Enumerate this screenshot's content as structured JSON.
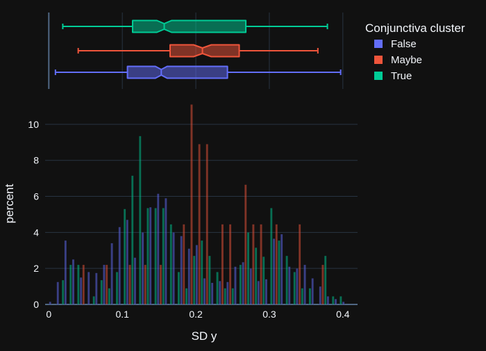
{
  "chart_data": {
    "type": "histogram",
    "xlabel": "SD y",
    "ylabel": "percent",
    "xlim": [
      -0.005,
      0.42
    ],
    "ylim": [
      0,
      11.5
    ],
    "x_ticks": [
      "0",
      "0.1",
      "0.2",
      "0.3",
      "0.4"
    ],
    "y_ticks": [
      "0",
      "2",
      "4",
      "6",
      "8",
      "10"
    ],
    "legend": {
      "title": "Conjunctiva cluster",
      "placement": "top-right"
    },
    "bin_width": 0.0105,
    "bin_starts": [
      0.0,
      0.0105,
      0.021,
      0.0315,
      0.042,
      0.0525,
      0.063,
      0.0735,
      0.084,
      0.0945,
      0.105,
      0.1155,
      0.126,
      0.1365,
      0.147,
      0.1575,
      0.168,
      0.1785,
      0.189,
      0.1995,
      0.21,
      0.2205,
      0.231,
      0.2415,
      0.252,
      0.2625,
      0.273,
      0.2835,
      0.294,
      0.3045,
      0.315,
      0.3255,
      0.336,
      0.3465,
      0.357,
      0.3675,
      0.378,
      0.3885,
      0.399
    ],
    "series": [
      {
        "name": "False",
        "color": "#636efa",
        "box": {
          "min": 0.009,
          "q1": 0.107,
          "median": 0.153,
          "q3": 0.243,
          "max": 0.397,
          "notch_low": 0.145,
          "notch_high": 0.161
        },
        "values": [
          0.15,
          1.25,
          3.55,
          2.5,
          1.5,
          1.8,
          1.75,
          2.2,
          3.4,
          4.3,
          4.7,
          2.6,
          4.0,
          5.4,
          6.15,
          5.9,
          4.0,
          3.8,
          3.1,
          3.3,
          1.45,
          1.2,
          1.3,
          1.25,
          2.1,
          2.35,
          2.0,
          1.3,
          1.4,
          3.65,
          3.9,
          2.1,
          2.0,
          2.2,
          1.45,
          1.0,
          0.45,
          0.3,
          0.15
        ]
      },
      {
        "name": "Maybe",
        "color": "#ef553b",
        "box": {
          "min": 0.04,
          "q1": 0.165,
          "median": 0.209,
          "q3": 0.259,
          "max": 0.366,
          "notch_low": 0.197,
          "notch_high": 0.221
        },
        "values": [
          0,
          0,
          0,
          0,
          2.2,
          0,
          0,
          2.2,
          0,
          0,
          2.2,
          0,
          2.2,
          0,
          2.2,
          0,
          0,
          4.45,
          11.1,
          8.9,
          8.9,
          0,
          4.45,
          4.45,
          0,
          6.65,
          4.45,
          4.45,
          0,
          4.45,
          0,
          0,
          4.45,
          0,
          0,
          2.2,
          0,
          0,
          0
        ]
      },
      {
        "name": "True",
        "color": "#00cc96",
        "box": {
          "min": 0.019,
          "q1": 0.114,
          "median": 0.157,
          "q3": 0.268,
          "max": 0.379,
          "notch_low": 0.147,
          "notch_high": 0.167
        },
        "values": [
          0,
          1.35,
          2.2,
          2.2,
          0,
          0.45,
          1.35,
          0.9,
          1.8,
          5.3,
          7.15,
          9.35,
          5.35,
          5.35,
          5.35,
          4.45,
          1.8,
          0.9,
          2.7,
          3.55,
          2.7,
          1.8,
          0.9,
          0.9,
          2.2,
          4.0,
          3.15,
          2.65,
          5.35,
          3.55,
          2.7,
          1.8,
          0.9,
          0.9,
          0,
          2.7,
          0.45,
          0.45,
          0
        ]
      }
    ]
  }
}
